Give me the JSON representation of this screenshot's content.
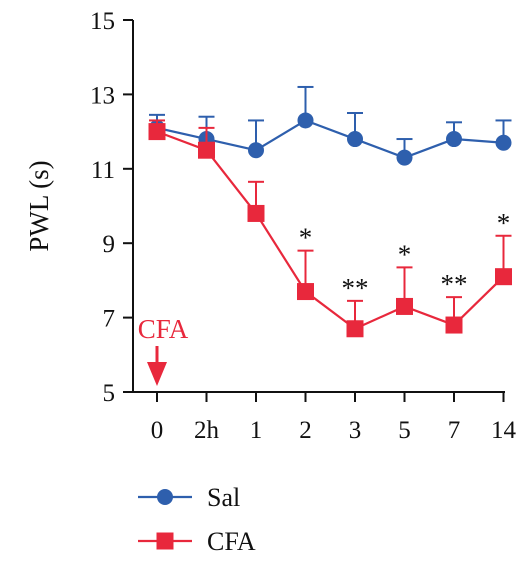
{
  "chart_data": {
    "type": "line",
    "ylabel": "PWL (s)",
    "xlabel": "",
    "categories": [
      "0",
      "2h",
      "1",
      "2",
      "3",
      "5",
      "7",
      "14"
    ],
    "ylim": [
      5,
      15
    ],
    "yticks": [
      5,
      7,
      9,
      11,
      13,
      15
    ],
    "grid": false,
    "legend_position": "bottom-left",
    "series": [
      {
        "name": "Sal",
        "color": "#2e5fad",
        "marker": "circle",
        "values": [
          12.1,
          11.8,
          11.5,
          12.3,
          11.8,
          11.3,
          11.8,
          11.7
        ],
        "error": [
          0.35,
          0.6,
          0.8,
          0.9,
          0.7,
          0.5,
          0.45,
          0.6
        ]
      },
      {
        "name": "CFA",
        "color": "#e8283c",
        "marker": "square",
        "values": [
          12.0,
          11.5,
          9.8,
          7.7,
          6.7,
          7.3,
          6.8,
          8.1
        ],
        "error": [
          0.3,
          0.6,
          0.85,
          1.1,
          0.75,
          1.05,
          0.75,
          1.1
        ]
      }
    ],
    "significance": [
      "",
      "",
      "",
      "*",
      "**",
      "*",
      "**",
      "*"
    ],
    "annotation": {
      "text": "CFA",
      "at_category": "0",
      "color": "#e8283c",
      "icon": "down-arrow-icon"
    }
  }
}
